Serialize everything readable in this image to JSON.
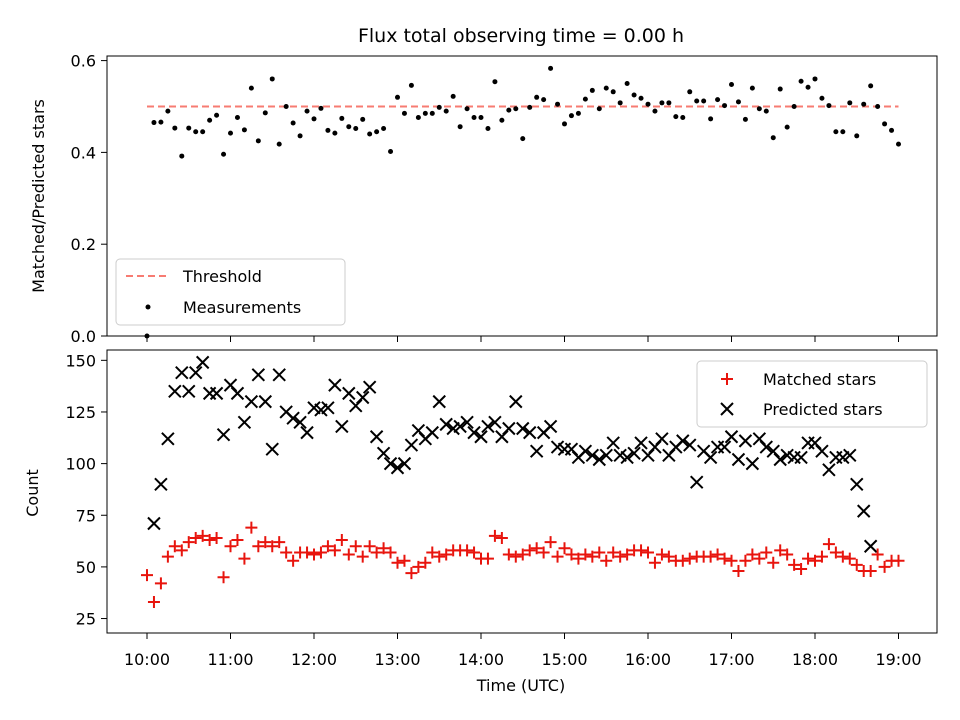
{
  "chart_data": [
    {
      "type": "scatter",
      "title": "Flux total observing time = 0.00 h",
      "ylabel": "Matched/Predicted stars",
      "xlabel": "",
      "ylim": [
        0,
        0.61
      ],
      "y_ticks": [
        "0.0",
        "0.2",
        "0.4",
        "0.6"
      ],
      "grid": false,
      "legend_position": "lower-left",
      "threshold": {
        "name": "Threshold",
        "value": 0.5,
        "color": "#f77b72",
        "style": "dashed"
      },
      "series": [
        {
          "name": "Measurements",
          "color": "#000000",
          "marker": "dot",
          "x_minutes": [
            0,
            5,
            10,
            15,
            20,
            25,
            30,
            35,
            40,
            45,
            50,
            55,
            60,
            65,
            70,
            75,
            80,
            85,
            90,
            95,
            100,
            105,
            110,
            115,
            120,
            125,
            130,
            135,
            140,
            145,
            150,
            155,
            160,
            165,
            170,
            175,
            180,
            185,
            190,
            195,
            200,
            205,
            210,
            215,
            220,
            225,
            230,
            235,
            240,
            245,
            250,
            255,
            260,
            265,
            270,
            275,
            280,
            285,
            290,
            295,
            300,
            305,
            310,
            315,
            320,
            325,
            330,
            335,
            340,
            345,
            350,
            355,
            360,
            365,
            370,
            375,
            380,
            385,
            390,
            395,
            400,
            405,
            410,
            415,
            420,
            425,
            430,
            435,
            440,
            445,
            450,
            455,
            460,
            465,
            470,
            475,
            480,
            485,
            490,
            495,
            500,
            505,
            510,
            515,
            520,
            525,
            530,
            535,
            540
          ],
          "values": [
            0.0,
            0.465,
            0.466,
            0.49,
            0.453,
            0.392,
            0.453,
            0.445,
            0.445,
            0.47,
            0.481,
            0.396,
            0.442,
            0.476,
            0.449,
            0.54,
            0.425,
            0.486,
            0.56,
            0.418,
            0.5,
            0.464,
            0.436,
            0.49,
            0.473,
            0.496,
            0.448,
            0.442,
            0.474,
            0.456,
            0.452,
            0.472,
            0.44,
            0.445,
            0.452,
            0.402,
            0.52,
            0.485,
            0.546,
            0.476,
            0.485,
            0.485,
            0.498,
            0.49,
            0.522,
            0.456,
            0.495,
            0.476,
            0.476,
            0.452,
            0.554,
            0.47,
            0.492,
            0.495,
            0.43,
            0.498,
            0.52,
            0.515,
            0.583,
            0.505,
            0.462,
            0.48,
            0.485,
            0.516,
            0.535,
            0.495,
            0.54,
            0.532,
            0.508,
            0.55,
            0.525,
            0.518,
            0.505,
            0.49,
            0.508,
            0.508,
            0.478,
            0.476,
            0.532,
            0.512,
            0.512,
            0.473,
            0.515,
            0.502,
            0.548,
            0.51,
            0.472,
            0.54,
            0.495,
            0.49,
            0.432,
            0.538,
            0.455,
            0.5,
            0.555,
            0.542,
            0.56,
            0.518,
            0.502,
            0.445,
            0.445,
            0.508,
            0.436,
            0.505,
            0.545,
            0.5,
            0.462,
            0.448,
            0.418
          ]
        }
      ]
    },
    {
      "type": "scatter",
      "title": "",
      "xlabel": "Time (UTC)",
      "ylabel": "Count",
      "ylim": [
        18,
        155
      ],
      "y_ticks": [
        "25",
        "50",
        "75",
        "100",
        "125",
        "150"
      ],
      "x_ticks": [
        "10:00",
        "11:00",
        "12:00",
        "13:00",
        "14:00",
        "15:00",
        "16:00",
        "17:00",
        "18:00",
        "19:00"
      ],
      "grid": false,
      "legend_position": "top-right",
      "series": [
        {
          "name": "Matched stars",
          "color": "#e8140d",
          "marker": "plus",
          "x_minutes": [
            0,
            5,
            10,
            15,
            20,
            25,
            30,
            35,
            40,
            45,
            50,
            55,
            60,
            65,
            70,
            75,
            80,
            85,
            90,
            95,
            100,
            105,
            110,
            115,
            120,
            125,
            130,
            135,
            140,
            145,
            150,
            155,
            160,
            165,
            170,
            175,
            180,
            185,
            190,
            195,
            200,
            205,
            210,
            215,
            220,
            225,
            230,
            235,
            240,
            245,
            250,
            255,
            260,
            265,
            270,
            275,
            280,
            285,
            290,
            295,
            300,
            305,
            310,
            315,
            320,
            325,
            330,
            335,
            340,
            345,
            350,
            355,
            360,
            365,
            370,
            375,
            380,
            385,
            390,
            395,
            400,
            405,
            410,
            415,
            420,
            425,
            430,
            435,
            440,
            445,
            450,
            455,
            460,
            465,
            470,
            475,
            480,
            485,
            490,
            495,
            500,
            505,
            510,
            515,
            520,
            525,
            530,
            535,
            540
          ],
          "values": [
            46,
            33,
            42,
            55,
            60,
            58,
            62,
            64,
            65,
            63,
            64,
            45,
            60,
            63,
            54,
            69,
            60,
            62,
            60,
            62,
            57,
            53,
            57,
            57,
            56,
            57,
            60,
            58,
            63,
            56,
            60,
            55,
            60,
            57,
            59,
            57,
            52,
            53,
            47,
            50,
            52,
            57,
            55,
            56,
            58,
            58,
            58,
            57,
            54,
            54,
            65,
            64,
            56,
            55,
            56,
            58,
            59,
            57,
            62,
            55,
            59,
            56,
            54,
            56,
            55,
            57,
            53,
            57,
            55,
            56,
            58,
            58,
            57,
            52,
            56,
            55,
            53,
            53,
            54,
            55,
            55,
            55,
            56,
            54,
            53,
            48,
            53,
            56,
            54,
            57,
            52,
            58,
            56,
            51,
            49,
            54,
            53,
            55,
            61,
            57,
            55,
            54,
            51,
            48,
            48,
            56,
            50,
            53,
            53
          ]
        },
        {
          "name": "Predicted stars",
          "color": "#000000",
          "marker": "x",
          "x_minutes": [
            0,
            5,
            10,
            15,
            20,
            25,
            30,
            35,
            40,
            45,
            50,
            55,
            60,
            65,
            70,
            75,
            80,
            85,
            90,
            95,
            100,
            105,
            110,
            115,
            120,
            125,
            130,
            135,
            140,
            145,
            150,
            155,
            160,
            165,
            170,
            175,
            180,
            185,
            190,
            195,
            200,
            205,
            210,
            215,
            220,
            225,
            230,
            235,
            240,
            245,
            250,
            255,
            260,
            265,
            270,
            275,
            280,
            285,
            290,
            295,
            300,
            305,
            310,
            315,
            320,
            325,
            330,
            335,
            340,
            345,
            350,
            355,
            360,
            365,
            370,
            375,
            380,
            385,
            390,
            395,
            400,
            405,
            410,
            415,
            420,
            425,
            430,
            435,
            440,
            445,
            450,
            455,
            460,
            465,
            470,
            475,
            480,
            485,
            490,
            495,
            500,
            505,
            510,
            515,
            520,
            525,
            530,
            535,
            540
          ],
          "values": [
            null,
            71,
            90,
            112,
            135,
            144,
            135,
            144,
            149,
            134,
            134,
            114,
            138,
            134,
            120,
            130,
            143,
            130,
            107,
            143,
            125,
            122,
            120,
            115,
            127,
            126,
            127,
            138,
            118,
            134,
            128,
            132,
            137,
            113,
            105,
            100,
            98,
            100,
            109,
            116,
            112,
            115,
            130,
            119,
            117,
            118,
            120,
            115,
            113,
            118,
            120,
            113,
            117,
            130,
            117,
            115,
            106,
            115,
            118,
            108,
            107,
            107,
            103,
            106,
            104,
            102,
            104,
            110,
            104,
            103,
            105,
            110,
            104,
            108,
            112,
            104,
            108,
            111,
            109,
            91,
            106,
            103,
            108,
            108,
            113,
            102,
            111,
            100,
            112,
            108,
            106,
            102,
            104,
            103,
            103,
            110,
            110,
            106,
            97,
            103,
            103,
            104,
            90,
            77,
            60,
            null,
            null,
            null,
            null
          ]
        }
      ]
    }
  ]
}
